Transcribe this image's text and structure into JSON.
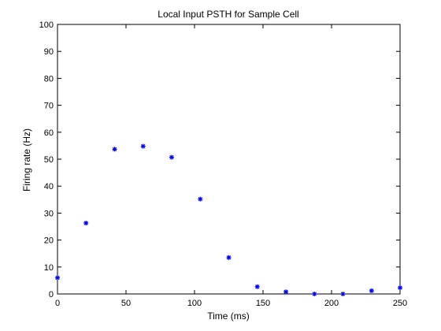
{
  "chart_data": {
    "type": "scatter",
    "title": "Local Input PSTH for Sample Cell",
    "xlabel": "Time (ms)",
    "ylabel": "Firing rate (Hz)",
    "xlim": [
      0,
      250
    ],
    "ylim": [
      0,
      100
    ],
    "xticks": [
      0,
      50,
      100,
      150,
      200,
      250
    ],
    "yticks": [
      0,
      10,
      20,
      30,
      40,
      50,
      60,
      70,
      80,
      90,
      100
    ],
    "grid": false,
    "legend": "none",
    "marker": "asterisk",
    "color": "#0000ff",
    "x": [
      0,
      20.8,
      41.7,
      62.5,
      83.3,
      104.2,
      125,
      145.8,
      166.7,
      187.5,
      208.3,
      229.2,
      250
    ],
    "y": [
      6,
      26.3,
      53.7,
      54.8,
      50.7,
      35.2,
      13.5,
      2.7,
      0.8,
      0,
      0,
      1.2,
      2.3
    ]
  }
}
